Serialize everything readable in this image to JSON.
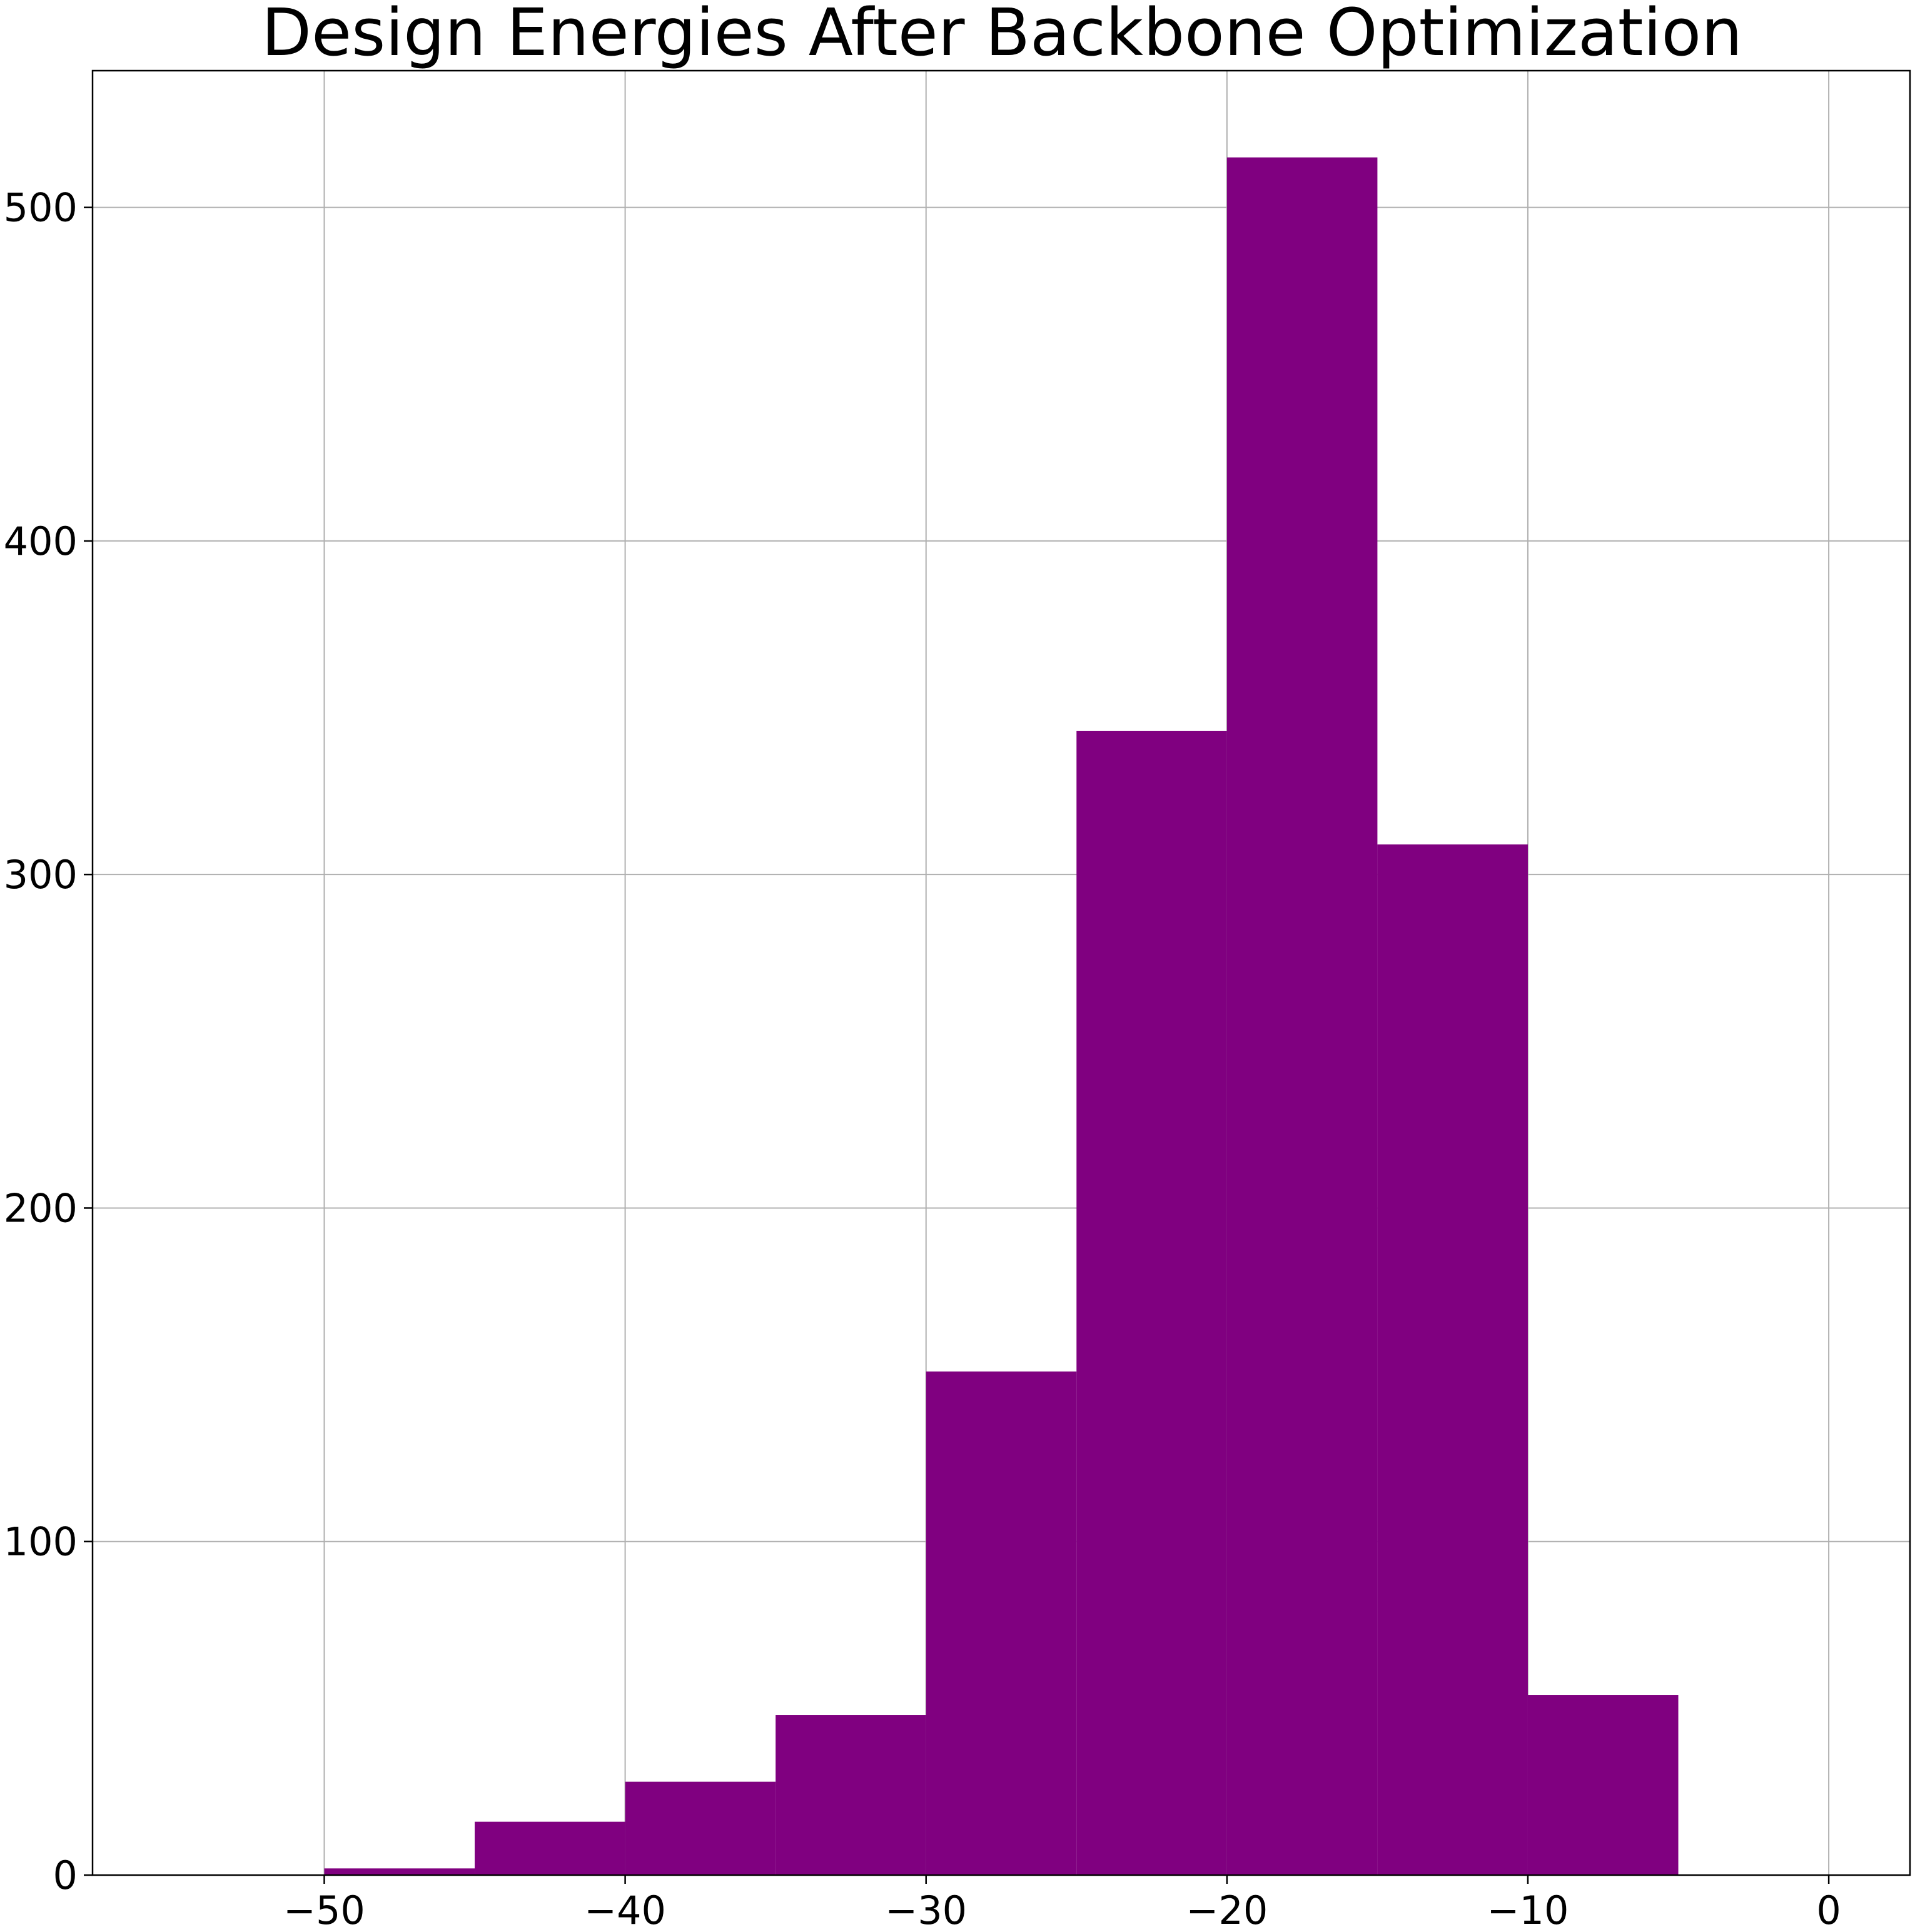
{
  "chart_data": {
    "type": "bar",
    "title": "Design Energies After Backbone Optimization",
    "xlabel": "",
    "ylabel": "",
    "xlim": [
      -57.7,
      2.7
    ],
    "ylim": [
      0,
      541
    ],
    "x_ticks": [
      -50,
      -40,
      -30,
      -20,
      -10,
      0
    ],
    "x_tick_labels": [
      "−50",
      "−40",
      "−30",
      "−20",
      "−10",
      "0"
    ],
    "y_ticks": [
      0,
      100,
      200,
      300,
      400,
      500
    ],
    "y_tick_labels": [
      "0",
      "100",
      "200",
      "300",
      "400",
      "500"
    ],
    "grid": true,
    "legend": "none",
    "bin_edges": [
      -50,
      -45,
      -40,
      -35,
      -30,
      -25,
      -20,
      -15,
      -10,
      -5
    ],
    "values": [
      2,
      16,
      28,
      48,
      151,
      343,
      515,
      309,
      54
    ],
    "color": "#800080"
  }
}
